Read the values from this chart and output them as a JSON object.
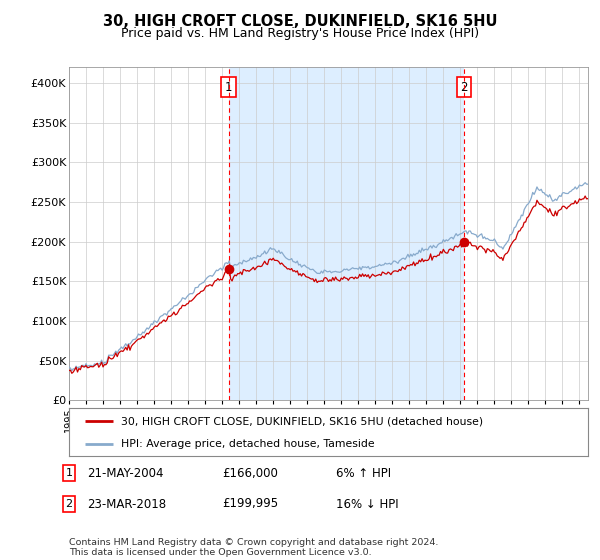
{
  "title": "30, HIGH CROFT CLOSE, DUKINFIELD, SK16 5HU",
  "subtitle": "Price paid vs. HM Land Registry's House Price Index (HPI)",
  "ylim": [
    0,
    420000
  ],
  "yticks": [
    0,
    50000,
    100000,
    150000,
    200000,
    250000,
    300000,
    350000,
    400000
  ],
  "ytick_labels": [
    "£0",
    "£50K",
    "£100K",
    "£150K",
    "£200K",
    "£250K",
    "£300K",
    "£350K",
    "£400K"
  ],
  "xlim_start": 1995.0,
  "xlim_end": 2025.5,
  "chart_bg_color": "#ffffff",
  "shade_color": "#ddeeff",
  "fig_bg_color": "#ffffff",
  "hpi_color": "#88aacc",
  "price_color": "#cc0000",
  "grid_color": "#cccccc",
  "marker1_year": 2004.38,
  "marker1_price": 166000,
  "marker2_year": 2018.22,
  "marker2_price": 199995,
  "legend_line1": "30, HIGH CROFT CLOSE, DUKINFIELD, SK16 5HU (detached house)",
  "legend_line2": "HPI: Average price, detached house, Tameside",
  "note1_label": "1",
  "note1_date": "21-MAY-2004",
  "note1_price": "£166,000",
  "note1_hpi": "6% ↑ HPI",
  "note2_label": "2",
  "note2_date": "23-MAR-2018",
  "note2_price": "£199,995",
  "note2_hpi": "16% ↓ HPI",
  "footer": "Contains HM Land Registry data © Crown copyright and database right 2024.\nThis data is licensed under the Open Government Licence v3.0."
}
